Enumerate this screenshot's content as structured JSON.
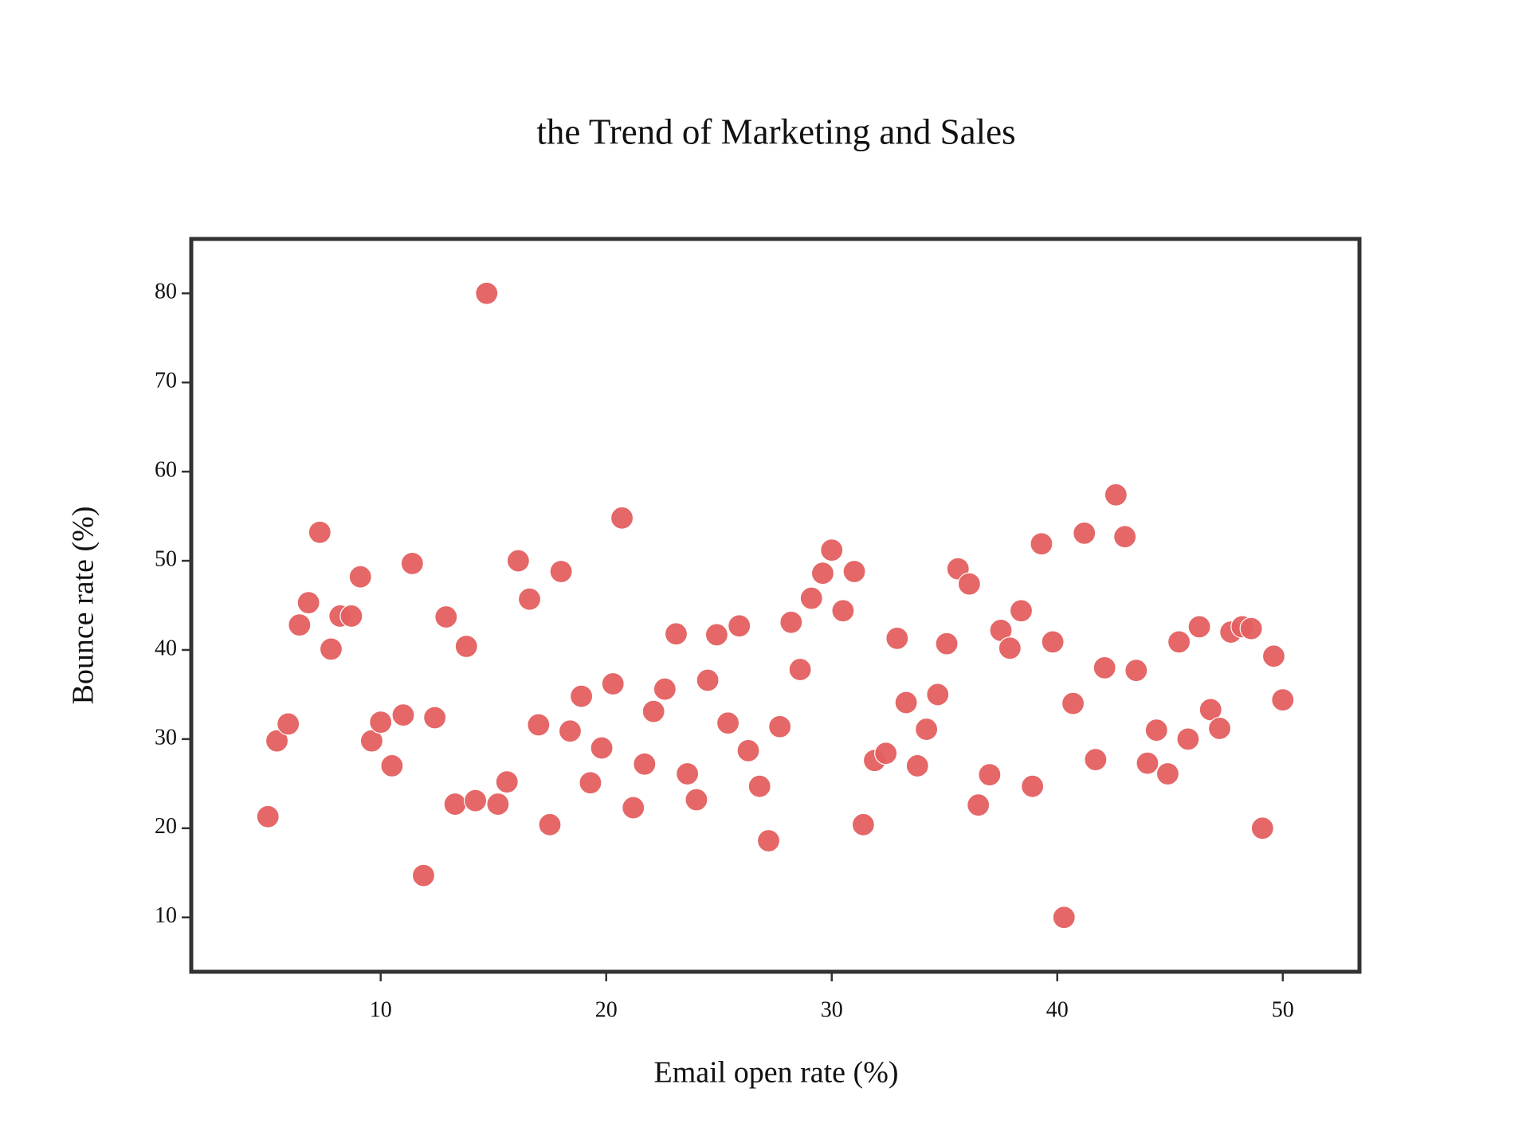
{
  "chart_data": {
    "type": "scatter",
    "title": "the Trend of Marketing and Sales",
    "x_label": "Email open rate (%)",
    "y_label": "Bounce rate (%)",
    "color": "#e45f5f",
    "xlim": [
      1.6,
      53.4
    ],
    "ylim": [
      3.9,
      86.1
    ],
    "xticks": [
      10,
      20,
      30,
      40,
      50
    ],
    "yticks": [
      10,
      20,
      30,
      40,
      50,
      60,
      70,
      80
    ],
    "x": [
      5.0,
      5.4,
      5.9,
      6.4,
      6.8,
      7.3,
      7.8,
      8.2,
      8.7,
      9.1,
      9.6,
      10.0,
      10.5,
      11.0,
      11.4,
      11.9,
      12.4,
      12.9,
      13.3,
      13.8,
      14.2,
      14.7,
      15.2,
      15.6,
      16.1,
      16.6,
      17.0,
      17.5,
      18.0,
      18.4,
      18.9,
      19.3,
      19.8,
      20.3,
      20.7,
      21.2,
      21.7,
      22.1,
      22.6,
      23.1,
      23.6,
      24.0,
      24.5,
      24.9,
      25.4,
      25.9,
      26.3,
      26.8,
      27.2,
      27.7,
      28.2,
      28.6,
      29.1,
      29.6,
      30.0,
      30.5,
      31.0,
      31.4,
      31.9,
      32.4,
      32.9,
      33.3,
      33.8,
      34.2,
      34.7,
      35.1,
      35.6,
      36.1,
      36.5,
      37.0,
      37.5,
      37.9,
      38.4,
      38.9,
      39.3,
      39.8,
      40.3,
      40.7,
      41.2,
      41.7,
      42.1,
      42.6,
      43.0,
      43.5,
      44.0,
      44.4,
      44.9,
      45.4,
      45.8,
      46.3,
      46.8,
      47.2,
      47.7,
      48.2,
      48.6,
      49.1,
      49.6,
      50.0
    ],
    "values": [
      21.3,
      29.8,
      31.7,
      42.8,
      45.3,
      53.2,
      40.1,
      43.8,
      43.8,
      48.2,
      29.8,
      31.9,
      27.0,
      32.7,
      49.7,
      14.7,
      32.4,
      43.7,
      22.7,
      40.4,
      23.1,
      80.0,
      22.7,
      25.2,
      50.0,
      45.7,
      31.6,
      20.4,
      48.8,
      30.9,
      34.8,
      25.1,
      29.0,
      36.2,
      54.8,
      22.3,
      27.2,
      33.1,
      35.6,
      41.8,
      26.1,
      23.2,
      36.6,
      41.7,
      31.8,
      42.7,
      28.7,
      24.7,
      18.6,
      31.4,
      43.1,
      37.8,
      45.8,
      48.6,
      51.2,
      44.4,
      48.8,
      20.4,
      27.6,
      28.4,
      41.3,
      34.1,
      27.0,
      31.1,
      35.0,
      40.7,
      49.1,
      47.4,
      22.6,
      26.0,
      42.2,
      40.2,
      44.4,
      24.7,
      51.9,
      40.9,
      10.0,
      34.0,
      53.1,
      27.7,
      38.0,
      57.4,
      52.7,
      37.7,
      27.3,
      31.0,
      26.1,
      40.9,
      30.0,
      42.6,
      33.3,
      31.2,
      42.0,
      42.6,
      42.4,
      20.0,
      39.3,
      34.4
    ]
  }
}
